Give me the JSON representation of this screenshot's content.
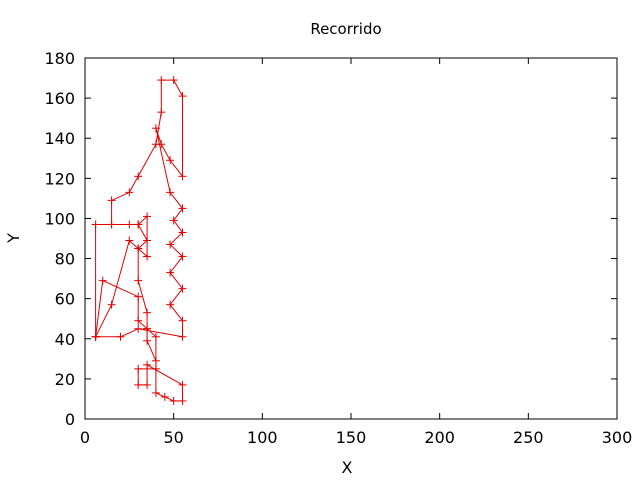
{
  "chart_data": {
    "type": "line",
    "title": "Recorrido",
    "xlabel": "X",
    "ylabel": "Y",
    "xlim": [
      0,
      300
    ],
    "ylim": [
      0,
      180
    ],
    "xticks": [
      0,
      50,
      100,
      150,
      200,
      250,
      300
    ],
    "yticks": [
      0,
      20,
      40,
      60,
      80,
      100,
      120,
      140,
      160,
      180
    ],
    "xtick_labels": [
      "0",
      "50",
      "100",
      "150",
      "200",
      "250",
      "300"
    ],
    "ytick_labels": [
      "0",
      "20",
      "40",
      "60",
      "80",
      "100",
      "120",
      "140",
      "160",
      "180"
    ],
    "grid": false,
    "legend": "none",
    "series_color": "#e00000",
    "marker": "plus",
    "series": [
      {
        "x": [
          6,
          15,
          25,
          30,
          35,
          30,
          25,
          15,
          15,
          25,
          30,
          40,
          43,
          43,
          50,
          55,
          55,
          48,
          43,
          40,
          48,
          55,
          50,
          55,
          48,
          55,
          48,
          55,
          48,
          55,
          55,
          30,
          20,
          6,
          6,
          15,
          30,
          35,
          35,
          30,
          30,
          35,
          35,
          40,
          40,
          30,
          30,
          35,
          35,
          55,
          55,
          50,
          45,
          40,
          40,
          35,
          35,
          30,
          30,
          10,
          6
        ],
        "y": [
          41,
          57,
          89,
          85,
          89,
          97,
          97,
          97,
          109,
          113,
          121,
          137,
          153,
          169,
          169,
          161,
          121,
          129,
          137,
          145,
          113,
          105,
          99,
          93,
          87,
          81,
          73,
          65,
          57,
          49,
          41,
          45,
          41,
          41,
          97,
          97,
          97,
          101,
          81,
          85,
          69,
          53,
          45,
          41,
          25,
          25,
          17,
          17,
          27,
          17,
          9,
          9,
          11,
          13,
          29,
          39,
          45,
          49,
          61,
          69,
          41
        ]
      }
    ]
  }
}
